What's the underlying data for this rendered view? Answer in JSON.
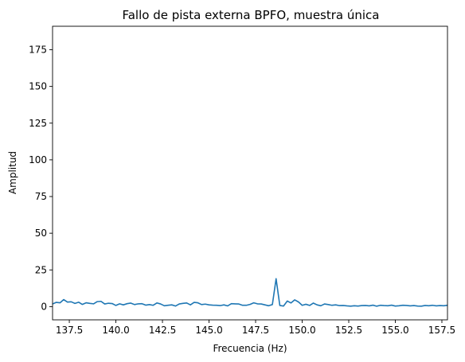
{
  "chart_data": {
    "type": "line",
    "title": "Fallo de pista externa BPFO, muestra única",
    "xlabel": "Frecuencia (Hz)",
    "ylabel": "Amplitud",
    "xlim": [
      136.6,
      157.8
    ],
    "ylim": [
      -9,
      191
    ],
    "x_ticks": [
      137.5,
      140.0,
      142.5,
      145.0,
      147.5,
      150.0,
      152.5,
      155.0,
      157.5
    ],
    "x_tick_labels": [
      "137.5",
      "140.0",
      "142.5",
      "145.0",
      "147.5",
      "150.0",
      "152.5",
      "155.0",
      "157.5"
    ],
    "y_ticks": [
      0,
      25,
      50,
      75,
      100,
      125,
      150,
      175
    ],
    "y_tick_labels": [
      "0",
      "25",
      "50",
      "75",
      "100",
      "125",
      "150",
      "175"
    ],
    "grid": false,
    "legend": "none",
    "series": [
      {
        "color": "#1f77b4",
        "x": [
          136.6,
          136.8,
          137.0,
          137.2,
          137.4,
          137.6,
          137.8,
          138.0,
          138.2,
          138.4,
          138.6,
          138.8,
          139.0,
          139.2,
          139.4,
          139.6,
          139.8,
          140.0,
          140.2,
          140.4,
          140.6,
          140.8,
          141.0,
          141.2,
          141.4,
          141.6,
          141.8,
          142.0,
          142.2,
          142.4,
          142.6,
          142.8,
          143.0,
          143.2,
          143.4,
          143.6,
          143.8,
          144.0,
          144.2,
          144.4,
          144.6,
          144.8,
          145.0,
          145.2,
          145.4,
          145.6,
          145.8,
          146.0,
          146.2,
          146.4,
          146.6,
          146.8,
          147.0,
          147.2,
          147.4,
          147.6,
          147.8,
          148.0,
          148.2,
          148.4,
          148.6,
          148.8,
          149.0,
          149.2,
          149.4,
          149.6,
          149.8,
          150.0,
          150.2,
          150.4,
          150.6,
          150.8,
          151.0,
          151.2,
          151.4,
          151.6,
          151.8,
          152.0,
          152.2,
          152.4,
          152.6,
          152.8,
          153.0,
          153.2,
          153.4,
          153.6,
          153.8,
          154.0,
          154.2,
          154.4,
          154.6,
          154.8,
          155.0,
          155.2,
          155.4,
          155.6,
          155.8,
          156.0,
          156.2,
          156.4,
          156.6,
          156.8,
          157.0,
          157.2,
          157.4,
          157.6,
          157.8
        ],
        "y": [
          1.8,
          2.9,
          2.6,
          4.8,
          3.1,
          3.3,
          2.2,
          3.0,
          1.5,
          2.6,
          2.2,
          1.9,
          3.4,
          3.6,
          1.8,
          2.3,
          2.1,
          0.8,
          1.9,
          1.2,
          2.0,
          2.4,
          1.4,
          1.9,
          2.0,
          1.0,
          1.4,
          0.9,
          2.5,
          1.8,
          0.6,
          0.9,
          1.2,
          0.4,
          1.8,
          2.2,
          2.5,
          1.2,
          2.9,
          2.6,
          1.4,
          1.7,
          1.2,
          1.0,
          0.9,
          0.7,
          1.2,
          0.5,
          2.0,
          1.9,
          1.8,
          0.9,
          0.9,
          1.5,
          2.6,
          1.9,
          1.8,
          1.2,
          0.6,
          1.4,
          19.0,
          0.8,
          0.4,
          3.8,
          2.5,
          4.6,
          3.2,
          0.9,
          1.6,
          0.8,
          2.4,
          1.2,
          0.6,
          1.8,
          1.4,
          0.9,
          1.2,
          0.7,
          0.8,
          0.5,
          0.3,
          0.6,
          0.4,
          0.7,
          0.8,
          0.5,
          1.0,
          0.3,
          0.9,
          0.7,
          0.6,
          1.0,
          0.4,
          0.6,
          0.9,
          0.8,
          0.5,
          0.7,
          0.4,
          0.3,
          0.8,
          0.6,
          0.9,
          0.5,
          0.7,
          0.6,
          0.9
        ]
      }
    ]
  }
}
